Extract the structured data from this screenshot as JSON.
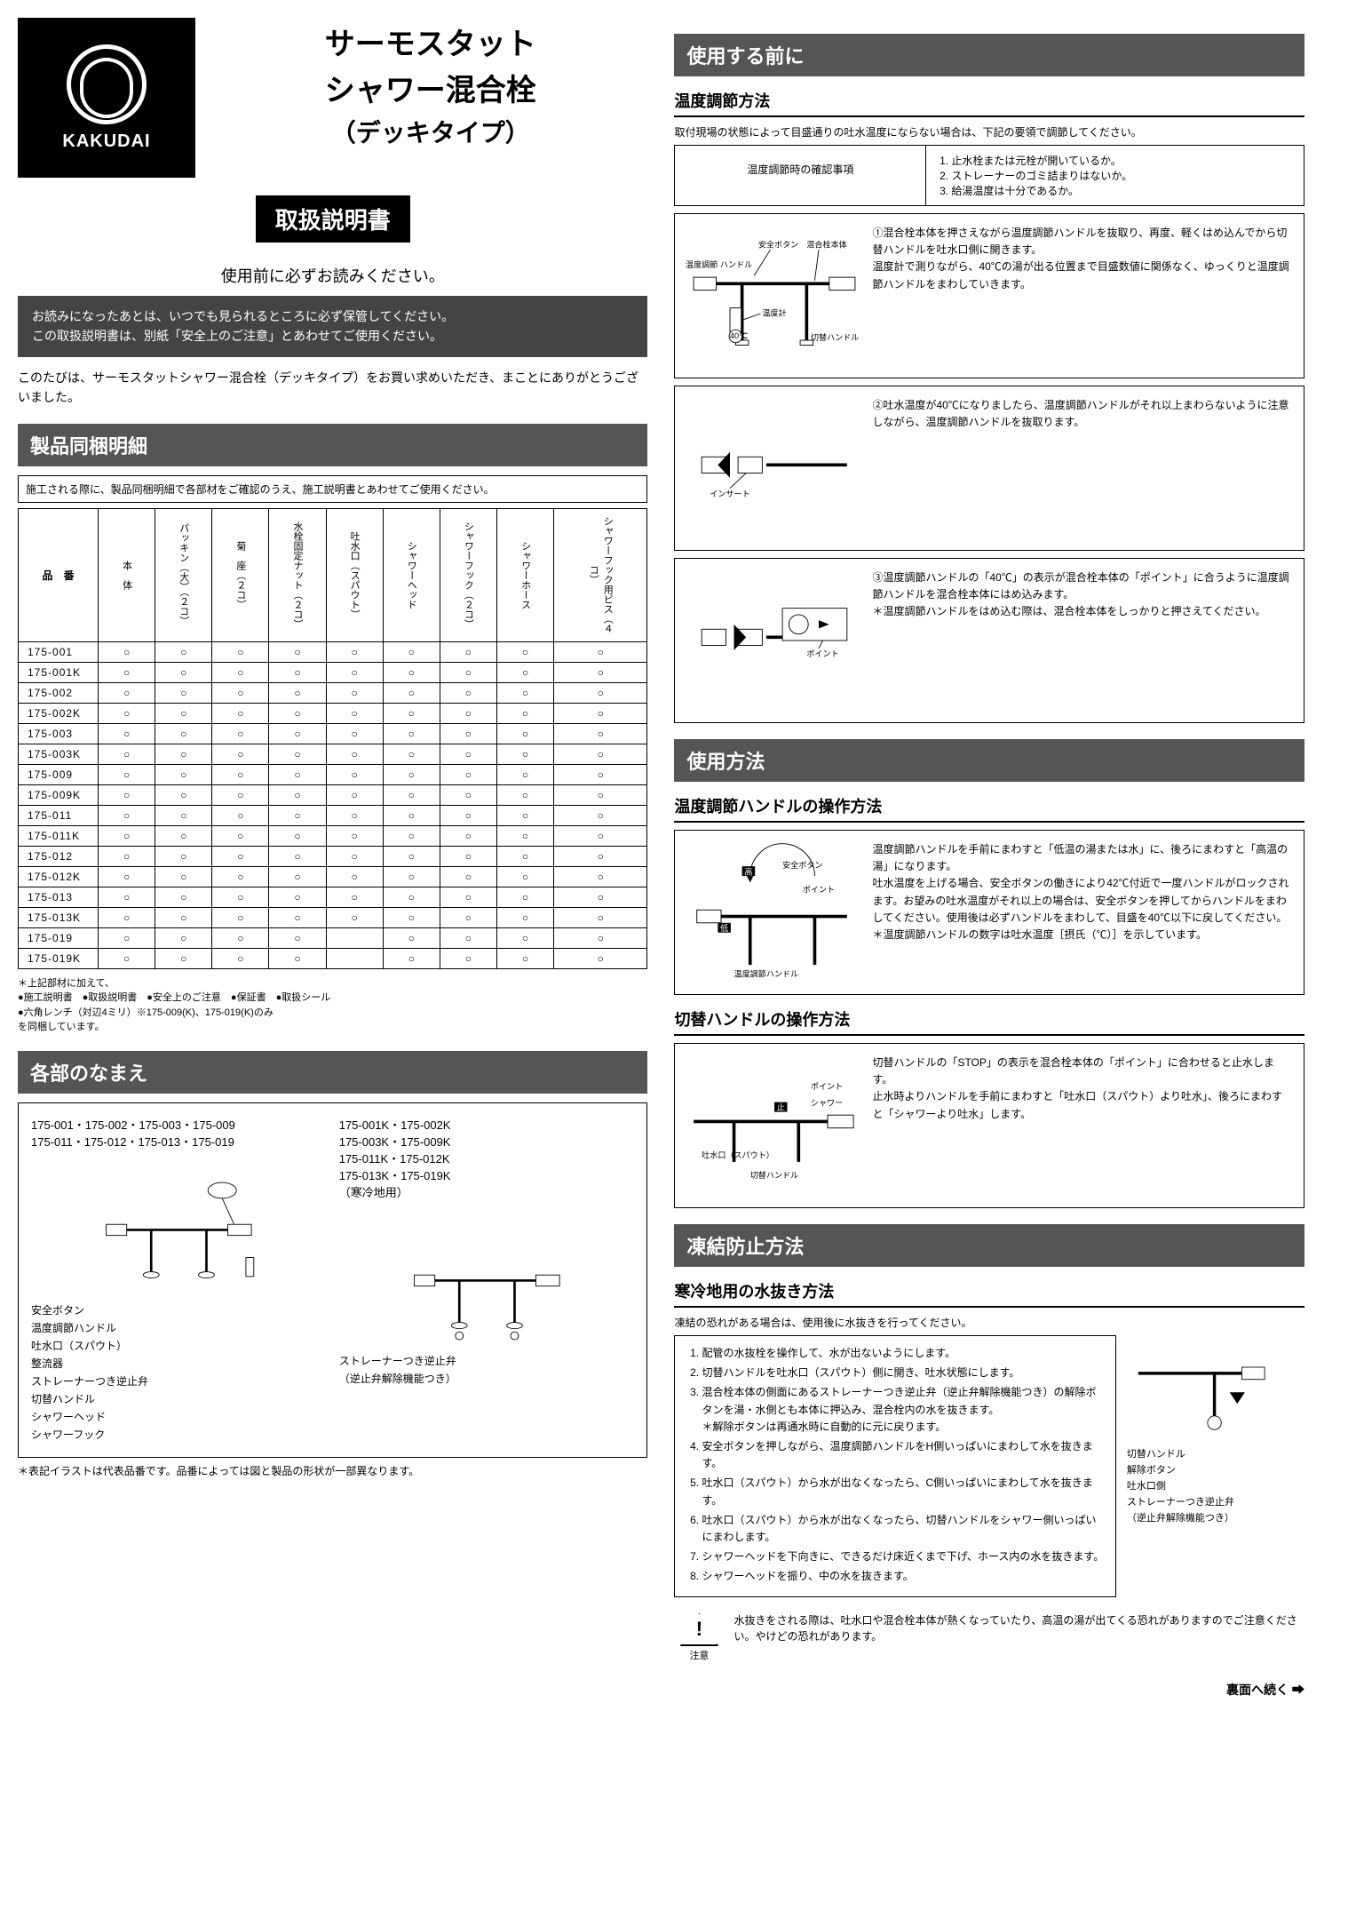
{
  "brand": "KAKUDAI",
  "title_line1": "サーモスタット",
  "title_line2": "シャワー混合栓",
  "title_sub": "（デッキタイプ）",
  "manual_label": "取扱説明書",
  "pre_read": "使用前に必ずお読みください。",
  "keep1": "お読みになったあとは、いつでも見られるところに必ず保管してください。",
  "keep2": "この取扱説明書は、別紙「安全上のご注意」とあわせてご使用ください。",
  "thanks": "このたびは、サーモスタットシャワー混合栓（デッキタイプ）をお買い求めいただき、まことにありがとうございました。",
  "sec_parts": "製品同梱明細",
  "parts_note": "施工される際に、製品同梱明細で各部材をご確認のうえ、施工説明書とあわせてご使用ください。",
  "parts_head_code": "品　番",
  "parts_columns": [
    "本　体",
    "パッキン（大）（２コ）",
    "菊　座（２コ）",
    "水栓固定ナット（２コ）",
    "吐水口（スパウト）",
    "シャワーヘッド",
    "シャワーフック（２コ）",
    "シャワーホース",
    "シャワーフック用ビス（４コ）"
  ],
  "parts_rows": [
    {
      "code": "175-001",
      "mask": "111111111"
    },
    {
      "code": "175-001K",
      "mask": "111111111"
    },
    {
      "code": "175-002",
      "mask": "111111111"
    },
    {
      "code": "175-002K",
      "mask": "111111111"
    },
    {
      "code": "175-003",
      "mask": "111111111"
    },
    {
      "code": "175-003K",
      "mask": "111111111"
    },
    {
      "code": "175-009",
      "mask": "111111111"
    },
    {
      "code": "175-009K",
      "mask": "111111111"
    },
    {
      "code": "175-011",
      "mask": "111111111"
    },
    {
      "code": "175-011K",
      "mask": "111111111"
    },
    {
      "code": "175-012",
      "mask": "111111111"
    },
    {
      "code": "175-012K",
      "mask": "111111111"
    },
    {
      "code": "175-013",
      "mask": "111111111"
    },
    {
      "code": "175-013K",
      "mask": "111111111"
    },
    {
      "code": "175-019",
      "mask": "111101111"
    },
    {
      "code": "175-019K",
      "mask": "111101111"
    }
  ],
  "below_table_lead": "＊上記部材に加えて、",
  "below_table_items": "●施工説明書　●取扱説明書　●安全上のご注意　●保証書　●取扱シール",
  "below_table_hex": "●六角レンチ（対辺4ミリ）※175-009(K)、175-019(K)のみ",
  "below_table_tail": "を同梱しています。",
  "sec_names": "各部のなまえ",
  "names_left_models": "175-001・175-002・175-003・175-009\n175-011・175-012・175-013・175-019",
  "names_right_models": "175-001K・175-002K\n175-003K・175-009K\n175-011K・175-012K\n175-013K・175-019K\n（寒冷地用）",
  "names_labels_left": [
    "安全ボタン",
    "温度調節ハンドル",
    "吐水口（スパウト）",
    "整流器",
    "ストレーナーつき逆止弁",
    "切替ハンドル",
    "シャワーヘッド",
    "シャワーフック"
  ],
  "names_labels_right": [
    "ストレーナーつき逆止弁",
    "（逆止弁解除機能つき）"
  ],
  "names_footnote": "＊表記イラストは代表品番です。品番によっては図と製品の形状が一部異なります。",
  "sec_before": "使用する前に",
  "sub_temp_adjust": "温度調節方法",
  "temp_adjust_intro": "取付現場の状態によって目盛通りの吐水温度にならない場合は、下記の要領で調節してください。",
  "confirm_head": "温度調節時の確認事項",
  "confirm_items": [
    "止水栓または元栓が開いているか。",
    "ストレーナーのゴミ詰まりはないか。",
    "給湯温度は十分であるか。"
  ],
  "fig1_labels": {
    "anzen": "安全ボタン",
    "hontai": "混合栓本体",
    "ondochosetsu": "温度調節\nハンドル",
    "ondokei": "温度計",
    "kirikae": "切替ハンドル",
    "forty": "40℃"
  },
  "step1": "①混合栓本体を押さえながら温度調節ハンドルを抜取り、再度、軽くはめ込んでから切替ハンドルを吐水口側に開きます。\n温度計で測りながら、40℃の湯が出る位置まで目盛数値に関係なく、ゆっくりと温度調節ハンドルをまわしていきます。",
  "fig2_label": "インサート",
  "step2": "②吐水温度が40℃になりましたら、温度調節ハンドルがそれ以上まわらないように注意しながら、温度調節ハンドルを抜取ります。",
  "fig3_label": "ポイント",
  "step3": "③温度調節ハンドルの「40℃」の表示が混合栓本体の「ポイント」に合うように温度調節ハンドルを混合栓本体にはめ込みます。\n＊温度調節ハンドルをはめ込む際は、混合栓本体をしっかりと押さえてください。",
  "sec_usage": "使用方法",
  "sub_ondo_handle": "温度調節ハンドルの操作方法",
  "usage_fig_labels": {
    "high": "高",
    "low": "低",
    "anzen": "安全ボタン",
    "point": "ポイント",
    "handle": "温度調節ハンドル"
  },
  "usage_text": "温度調節ハンドルを手前にまわすと「低温の湯または水」に、後ろにまわすと「高温の湯」になります。\n吐水温度を上げる場合、安全ボタンの働きにより42℃付近で一度ハンドルがロックされます。お望みの吐水温度がそれ以上の場合は、安全ボタンを押してからハンドルをまわしてください。使用後は必ずハンドルをまわして、目盛を40℃以下に戻してください。\n＊温度調節ハンドルの数字は吐水温度［摂氏（℃）］を示しています。",
  "sub_kirikae_handle": "切替ハンドルの操作方法",
  "kirikae_labels": {
    "stop": "止",
    "shower": "シャワー",
    "point": "ポイント",
    "spout": "吐水口（スパウト）",
    "handle": "切替ハンドル"
  },
  "kirikae_text": "切替ハンドルの「STOP」の表示を混合栓本体の「ポイント」に合わせると止水します。\n止水時よりハンドルを手前にまわすと「吐水口（スパウト）より吐水」、後ろにまわすと「シャワーより吐水」します。",
  "sec_freeze": "凍結防止方法",
  "sub_freeze": "寒冷地用の水抜き方法",
  "freeze_intro": "凍結の恐れがある場合は、使用後に水抜きを行ってください。",
  "freeze_steps": [
    "配管の水抜栓を操作して、水が出ないようにします。",
    "切替ハンドルを吐水口（スパウト）側に開き、吐水状態にします。",
    "混合栓本体の側面にあるストレーナーつき逆止弁（逆止弁解除機能つき）の解除ボタンを湯・水側とも本体に押込み、混合栓内の水を抜きます。\n＊解除ボタンは再通水時に自動的に元に戻ります。",
    "安全ボタンを押しながら、温度調節ハンドルをH側いっぱいにまわして水を抜きます。",
    "吐水口（スパウト）から水が出なくなったら、C側いっぱいにまわして水を抜きます。",
    "吐水口（スパウト）から水が出なくなったら、切替ハンドルをシャワー側いっぱいにまわします。",
    "シャワーヘッドを下向きに、できるだけ床近くまで下げ、ホース内の水を抜きます。",
    "シャワーヘッドを振り、中の水を抜きます。"
  ],
  "freeze_right_labels": [
    "切替ハンドル",
    "解除ボタン",
    "吐水口側",
    "ストレーナーつき逆止弁",
    "（逆止弁解除機能つき）"
  ],
  "caution_label": "注意",
  "caution_text": "水抜きをされる際は、吐水口や混合栓本体が熱くなっていたり、高温の湯が出てくる恐れがありますのでご注意ください。やけどの恐れがあります。",
  "turn_over": "裏面へ続く ➡"
}
